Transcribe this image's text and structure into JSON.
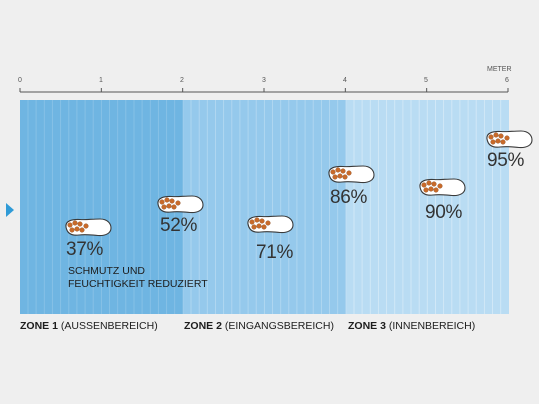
{
  "scale": {
    "unit_label": "METER",
    "ticks": [
      "0",
      "1",
      "2",
      "3",
      "4",
      "5",
      "6"
    ]
  },
  "zones": [
    {
      "name": "ZONE 1",
      "sub": "(AUSSENBEREICH)",
      "color": "#6fb5e2"
    },
    {
      "name": "ZONE 2",
      "sub": "(EINGANGSBEREICH)",
      "color": "#95c9ec"
    },
    {
      "name": "ZONE 3",
      "sub": "(INNENBEREICH)",
      "color": "#b9dcf3"
    }
  ],
  "steps": [
    {
      "percent": "37%"
    },
    {
      "percent": "52%"
    },
    {
      "percent": "71%"
    },
    {
      "percent": "86%"
    },
    {
      "percent": "90%"
    },
    {
      "percent": "95%"
    }
  ],
  "note": {
    "line1": "SCHMUTZ UND",
    "line2": "FEUCHTIGKEIT REDUZIERT"
  },
  "colors": {
    "marker": "#2f9bd7",
    "stripe": "#ffffff",
    "sole_dots": "#c86a2a",
    "sole_fill": "#ffffff",
    "sole_outline": "#3a3a3a"
  },
  "icons": {
    "marker": "triangle-right-icon",
    "step": "shoe-sole-icon"
  }
}
